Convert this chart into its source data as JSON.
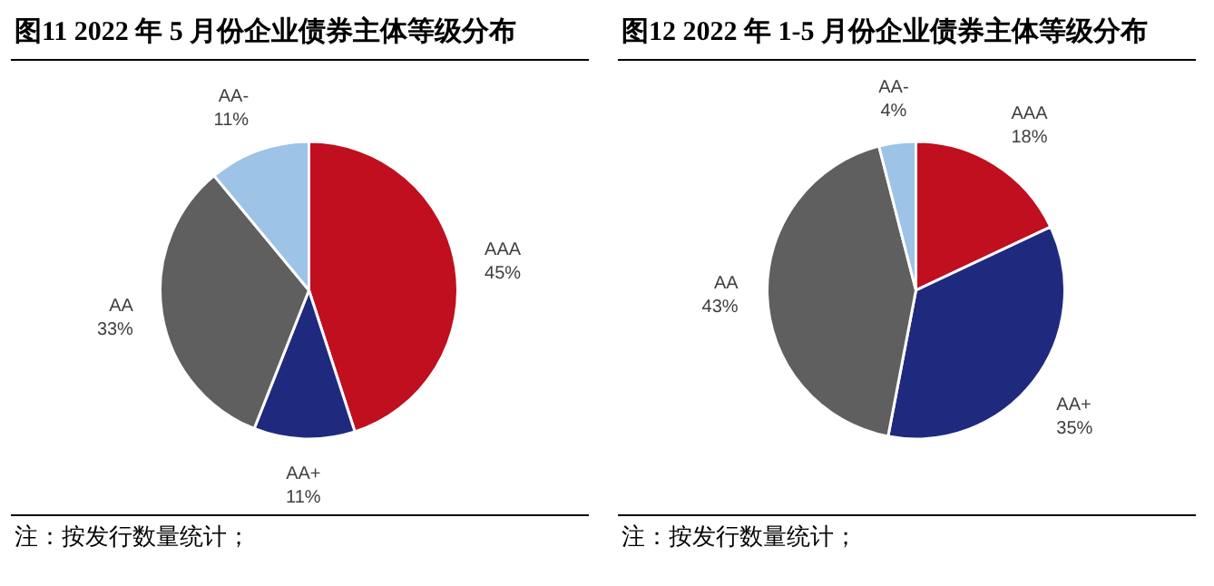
{
  "chart_data": [
    {
      "type": "pie",
      "title": "图11   2022 年 5 月份企业债券主体等级分布",
      "categories": [
        "AAA",
        "AA+",
        "AA",
        "AA-"
      ],
      "values": [
        45,
        11,
        33,
        11
      ],
      "colors": [
        "#c00f1f",
        "#1f2a7e",
        "#5f5f5f",
        "#9dc3e6"
      ],
      "value_labels": [
        "45%",
        "11%",
        "33%",
        "11%"
      ],
      "annotations": [
        "注：按发行数量统计；"
      ]
    },
    {
      "type": "pie",
      "title": "图12   2022 年 1-5 月份企业债券主体等级分布",
      "categories": [
        "AAA",
        "AA+",
        "AA",
        "AA-"
      ],
      "values": [
        18,
        35,
        43,
        4
      ],
      "colors": [
        "#c00f1f",
        "#1f2a7e",
        "#5f5f5f",
        "#9dc3e6"
      ],
      "value_labels": [
        "18%",
        "35%",
        "43%",
        "4%"
      ],
      "annotations": [
        "注：按发行数量统计；"
      ]
    }
  ]
}
